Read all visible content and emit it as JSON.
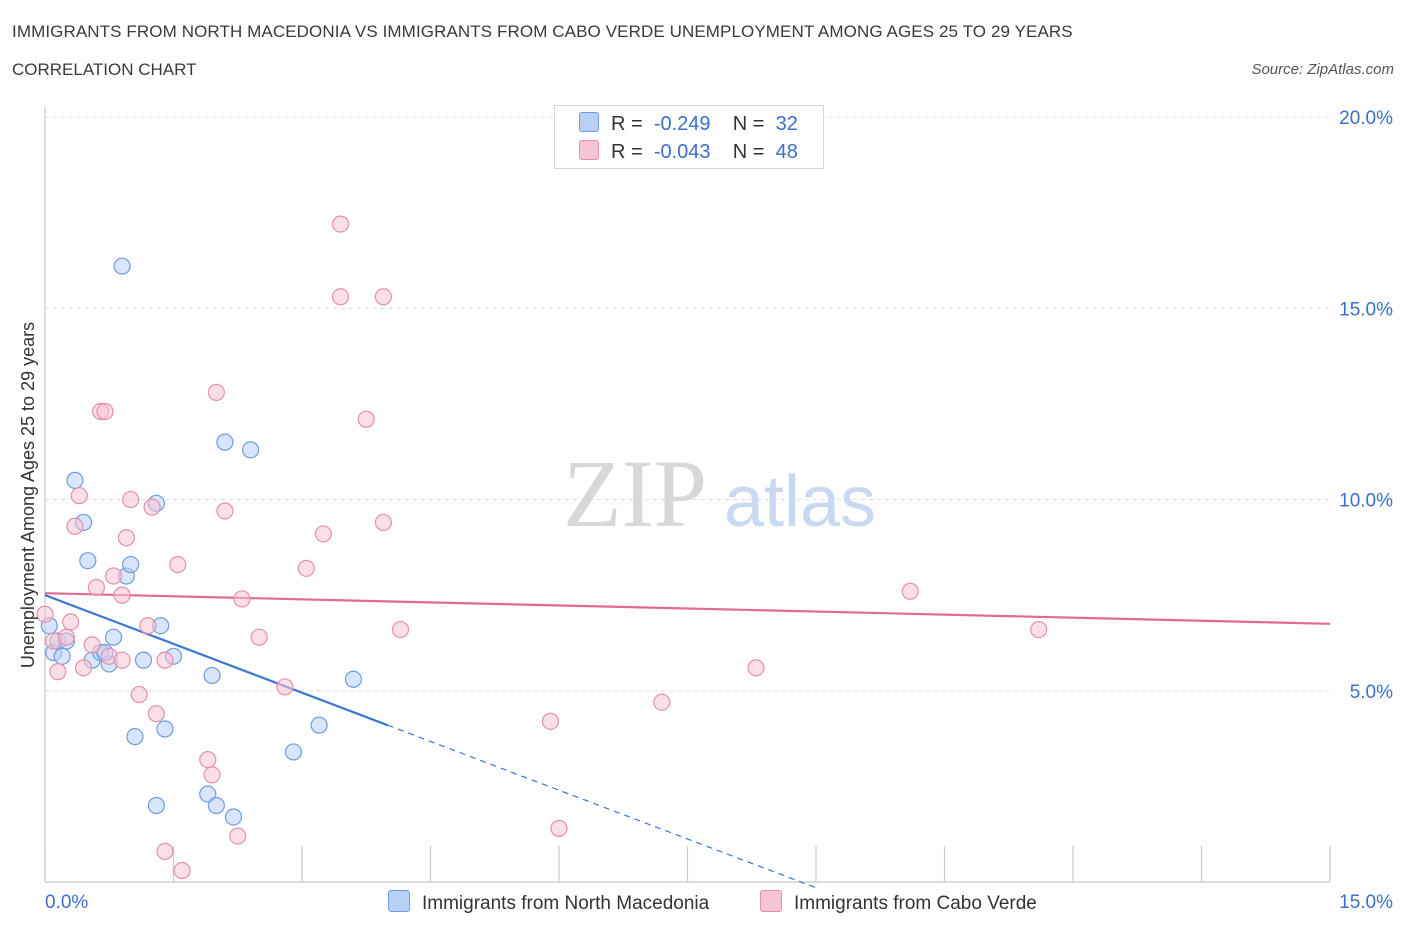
{
  "header": {
    "title": "IMMIGRANTS FROM NORTH MACEDONIA VS IMMIGRANTS FROM CABO VERDE UNEMPLOYMENT AMONG AGES 25 TO 29 YEARS",
    "subtitle": "CORRELATION CHART",
    "source": "Source: ZipAtlas.com"
  },
  "watermark": {
    "zip": "ZIP",
    "atlas": "atlas"
  },
  "legend": {
    "r_label": "R =",
    "n_label": "N =",
    "series1": {
      "r": "-0.249",
      "n": "32"
    },
    "series2": {
      "r": "-0.043",
      "n": "48"
    }
  },
  "colors": {
    "blue_fill": "#b8d0f5",
    "blue_stroke": "#6e9de0",
    "blue_line": "#3a76d4",
    "pink_fill": "#f7c4d4",
    "pink_stroke": "#e88faa",
    "pink_line": "#e06a92",
    "axis_text": "#3a6fd0",
    "grid": "#dcdcdc"
  },
  "chart_data": {
    "type": "scatter",
    "ylabel": "Unemployment Among Ages 25 to 29 years",
    "xlim": [
      0,
      15
    ],
    "ylim": [
      0,
      20
    ],
    "x_tick_labels": [
      "0.0%",
      "15.0%"
    ],
    "y_ticks": [
      5,
      10,
      15,
      20
    ],
    "y_tick_labels": [
      "5.0%",
      "10.0%",
      "15.0%",
      "20.0%"
    ],
    "series": [
      {
        "name": "Immigrants from North Macedonia",
        "color": "blue",
        "r": -0.249,
        "n": 32,
        "trend": {
          "x0": 0.0,
          "y0": 7.5,
          "x1": 4.0,
          "y1": 4.1,
          "dash_to_x": 9.0
        },
        "points": [
          [
            0.05,
            6.7
          ],
          [
            0.1,
            6.0
          ],
          [
            0.15,
            6.3
          ],
          [
            0.25,
            6.3
          ],
          [
            0.35,
            10.5
          ],
          [
            0.45,
            9.4
          ],
          [
            0.5,
            8.4
          ],
          [
            0.55,
            5.8
          ],
          [
            0.65,
            6.0
          ],
          [
            0.75,
            5.7
          ],
          [
            0.8,
            6.4
          ],
          [
            0.9,
            16.1
          ],
          [
            0.95,
            8.0
          ],
          [
            1.0,
            8.3
          ],
          [
            1.05,
            3.8
          ],
          [
            1.15,
            5.8
          ],
          [
            1.3,
            2.0
          ],
          [
            1.35,
            6.7
          ],
          [
            1.4,
            4.0
          ],
          [
            1.5,
            5.9
          ],
          [
            1.3,
            9.9
          ],
          [
            1.9,
            2.3
          ],
          [
            1.95,
            5.4
          ],
          [
            2.0,
            2.0
          ],
          [
            2.1,
            11.5
          ],
          [
            2.2,
            1.7
          ],
          [
            2.4,
            11.3
          ],
          [
            2.9,
            3.4
          ],
          [
            3.2,
            4.1
          ],
          [
            3.6,
            5.3
          ],
          [
            0.7,
            6.0
          ],
          [
            0.2,
            5.9
          ]
        ]
      },
      {
        "name": "Immigrants from Cabo Verde",
        "color": "pink",
        "r": -0.043,
        "n": 48,
        "trend": {
          "x0": 0.0,
          "y0": 7.55,
          "x1": 15.0,
          "y1": 6.75
        },
        "points": [
          [
            0.0,
            7.0
          ],
          [
            0.1,
            6.3
          ],
          [
            0.15,
            5.5
          ],
          [
            0.25,
            6.4
          ],
          [
            0.3,
            6.8
          ],
          [
            0.35,
            9.3
          ],
          [
            0.4,
            10.1
          ],
          [
            0.45,
            5.6
          ],
          [
            0.55,
            6.2
          ],
          [
            0.6,
            7.7
          ],
          [
            0.65,
            12.3
          ],
          [
            0.7,
            12.3
          ],
          [
            0.75,
            5.9
          ],
          [
            0.8,
            8.0
          ],
          [
            0.9,
            5.8
          ],
          [
            0.9,
            7.5
          ],
          [
            0.95,
            9.0
          ],
          [
            1.0,
            10.0
          ],
          [
            1.1,
            4.9
          ],
          [
            1.2,
            6.7
          ],
          [
            1.25,
            9.8
          ],
          [
            1.3,
            4.4
          ],
          [
            1.4,
            0.8
          ],
          [
            1.4,
            5.8
          ],
          [
            1.55,
            8.3
          ],
          [
            1.6,
            0.3
          ],
          [
            1.9,
            3.2
          ],
          [
            1.95,
            2.8
          ],
          [
            2.0,
            12.8
          ],
          [
            2.1,
            9.7
          ],
          [
            2.25,
            1.2
          ],
          [
            2.3,
            7.4
          ],
          [
            2.5,
            6.4
          ],
          [
            2.8,
            5.1
          ],
          [
            3.05,
            8.2
          ],
          [
            3.25,
            9.1
          ],
          [
            3.45,
            17.2
          ],
          [
            3.45,
            15.3
          ],
          [
            3.75,
            12.1
          ],
          [
            3.95,
            9.4
          ],
          [
            3.95,
            15.3
          ],
          [
            4.15,
            6.6
          ],
          [
            5.9,
            4.2
          ],
          [
            6.0,
            1.4
          ],
          [
            7.2,
            4.7
          ],
          [
            8.3,
            5.6
          ],
          [
            10.1,
            7.6
          ],
          [
            11.6,
            6.6
          ]
        ]
      }
    ]
  },
  "bottom_legend": {
    "series1": "Immigrants from North Macedonia",
    "series2": "Immigrants from Cabo Verde"
  }
}
